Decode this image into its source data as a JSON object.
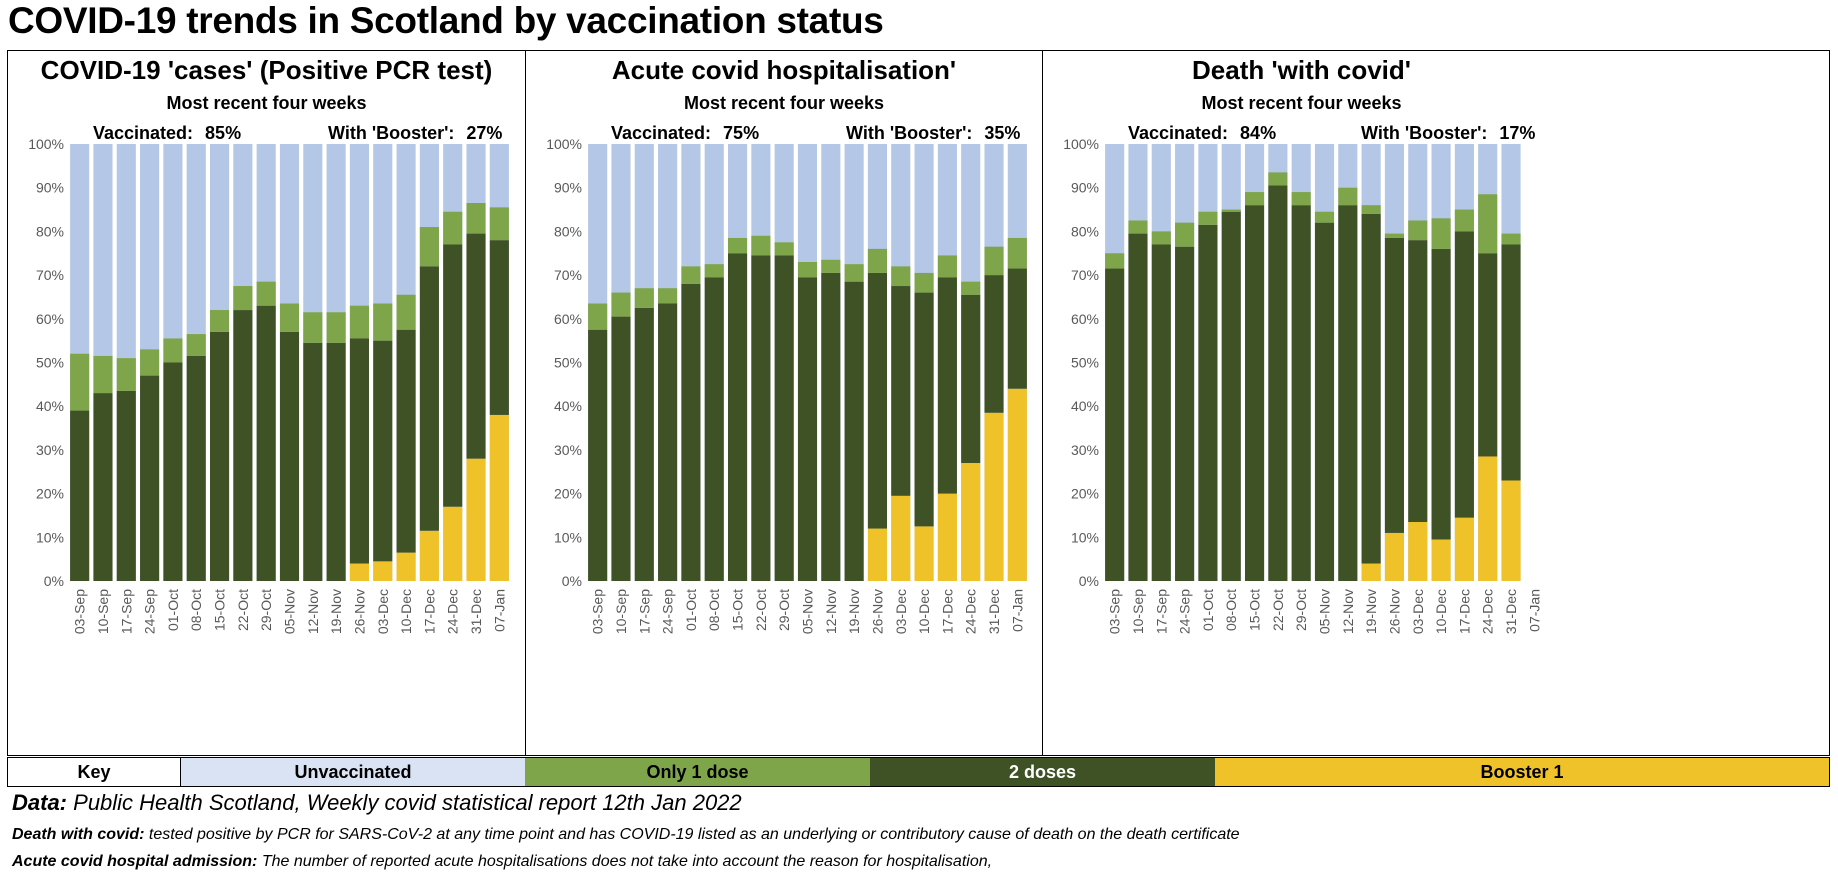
{
  "title": "COVID-19 trends in Scotland by vaccination status",
  "colors": {
    "unvaccinated": "#b4c7e7",
    "one_dose": "#7fa54a",
    "two_doses": "#3f5226",
    "booster": "#f0c22a",
    "key_label_bg": "#ffffff",
    "key_unvacc_bg": "#dae3f3"
  },
  "y_ticks": [
    "0%",
    "10%",
    "20%",
    "30%",
    "40%",
    "50%",
    "60%",
    "70%",
    "80%",
    "90%",
    "100%"
  ],
  "chart_data": [
    {
      "type": "bar",
      "stacked": true,
      "title": "COVID-19 'cases' (Positive PCR test)",
      "subtitle": "Most recent four weeks",
      "vaccinated_label": "Vaccinated:",
      "vaccinated_value": "85%",
      "booster_label": "With 'Booster':",
      "booster_value": "27%",
      "ylim": [
        0,
        100
      ],
      "categories": [
        "03-Sep",
        "10-Sep",
        "17-Sep",
        "24-Sep",
        "01-Oct",
        "08-Oct",
        "15-Oct",
        "22-Oct",
        "29-Oct",
        "05-Nov",
        "12-Nov",
        "19-Nov",
        "26-Nov",
        "03-Dec",
        "10-Dec",
        "17-Dec",
        "24-Dec",
        "31-Dec",
        "07-Jan"
      ],
      "series": [
        {
          "name": "Booster 1",
          "values": [
            0,
            0,
            0,
            0,
            0,
            0,
            0,
            0,
            0,
            0,
            0,
            0,
            4,
            4.5,
            6.5,
            11.5,
            17,
            28,
            38
          ]
        },
        {
          "name": "2 doses",
          "values": [
            39,
            43,
            43.5,
            47,
            50,
            51.5,
            57,
            62,
            63,
            57,
            54.5,
            54.5,
            51.5,
            50.5,
            51,
            60.5,
            60,
            51.5,
            40
          ]
        },
        {
          "name": "Only 1 dose",
          "values": [
            13,
            8.5,
            7.5,
            6,
            5.5,
            5,
            5,
            5.5,
            5.5,
            6.5,
            7,
            7,
            7.5,
            8.5,
            8,
            9,
            7.5,
            7,
            7.5
          ]
        }
      ]
    },
    {
      "type": "bar",
      "stacked": true,
      "title": "Acute covid hospitalisation'",
      "subtitle": "Most recent four weeks",
      "vaccinated_label": "Vaccinated:",
      "vaccinated_value": "75%",
      "booster_label": "With 'Booster':",
      "booster_value": "35%",
      "ylim": [
        0,
        100
      ],
      "categories": [
        "03-Sep",
        "10-Sep",
        "17-Sep",
        "24-Sep",
        "01-Oct",
        "08-Oct",
        "15-Oct",
        "22-Oct",
        "29-Oct",
        "05-Nov",
        "12-Nov",
        "19-Nov",
        "26-Nov",
        "03-Dec",
        "10-Dec",
        "17-Dec",
        "24-Dec",
        "31-Dec",
        "07-Jan"
      ],
      "series": [
        {
          "name": "Booster 1",
          "values": [
            0,
            0,
            0,
            0,
            0,
            0,
            0,
            0,
            0,
            0,
            0,
            0,
            12,
            19.5,
            12.5,
            20,
            27,
            38.5,
            44
          ]
        },
        {
          "name": "2 doses",
          "values": [
            57.5,
            60.5,
            62.5,
            63.5,
            68,
            69.5,
            75,
            74.5,
            74.5,
            69.5,
            70.5,
            68.5,
            58.5,
            48,
            53.5,
            49.5,
            38.5,
            31.5,
            27.5
          ]
        },
        {
          "name": "Only 1 dose",
          "values": [
            6,
            5.5,
            4.5,
            3.5,
            4,
            3,
            3.5,
            4.5,
            3,
            3.5,
            3,
            4,
            5.5,
            4.5,
            4.5,
            5,
            3,
            6.5,
            7
          ]
        }
      ]
    },
    {
      "type": "bar",
      "stacked": true,
      "title": "Death 'with covid'",
      "subtitle": "Most recent four weeks",
      "vaccinated_label": "Vaccinated:",
      "vaccinated_value": "84%",
      "booster_label": "With 'Booster':",
      "booster_value": "17%",
      "ylim": [
        0,
        100
      ],
      "categories": [
        "03-Sep",
        "10-Sep",
        "17-Sep",
        "24-Sep",
        "01-Oct",
        "08-Oct",
        "15-Oct",
        "22-Oct",
        "29-Oct",
        "05-Nov",
        "12-Nov",
        "19-Nov",
        "26-Nov",
        "03-Dec",
        "10-Dec",
        "17-Dec",
        "24-Dec",
        "31-Dec",
        "07-Jan"
      ],
      "series": [
        {
          "name": "Booster 1",
          "values": [
            0,
            0,
            0,
            0,
            0,
            0,
            0,
            0,
            0,
            0,
            0,
            4,
            11,
            13.5,
            9.5,
            14.5,
            28.5,
            23,
            0
          ]
        },
        {
          "name": "2 doses",
          "values": [
            71.5,
            79.5,
            77,
            76.5,
            81.5,
            84.5,
            86,
            90.5,
            86,
            82,
            86,
            80,
            67.5,
            64.5,
            66.5,
            65.5,
            46.5,
            54,
            0
          ]
        },
        {
          "name": "Only 1 dose",
          "values": [
            3.5,
            3,
            3,
            5.5,
            3,
            0.5,
            3,
            3,
            3,
            2.5,
            4,
            2,
            1,
            4.5,
            7,
            5,
            13.5,
            2.5,
            0
          ]
        }
      ]
    }
  ],
  "key": {
    "label": "Key",
    "unvaccinated": "Unvaccinated",
    "one_dose": "Only 1 dose",
    "two_doses": "2 doses",
    "booster": "Booster 1"
  },
  "footer": {
    "source_label": "Data:",
    "source_text": "Public Health Scotland, Weekly covid statistical report 12th Jan 2022",
    "note1_label": "Death with covid:",
    "note1_text": "tested positive by PCR for SARS-CoV-2 at any time point and has COVID-19 listed as an underlying or contributory cause of death on the death certificate",
    "note2_label": "Acute covid hospital admission:",
    "note2_text": "The number of reported acute hospitalisations does not take into account the reason for hospitalisation,"
  }
}
